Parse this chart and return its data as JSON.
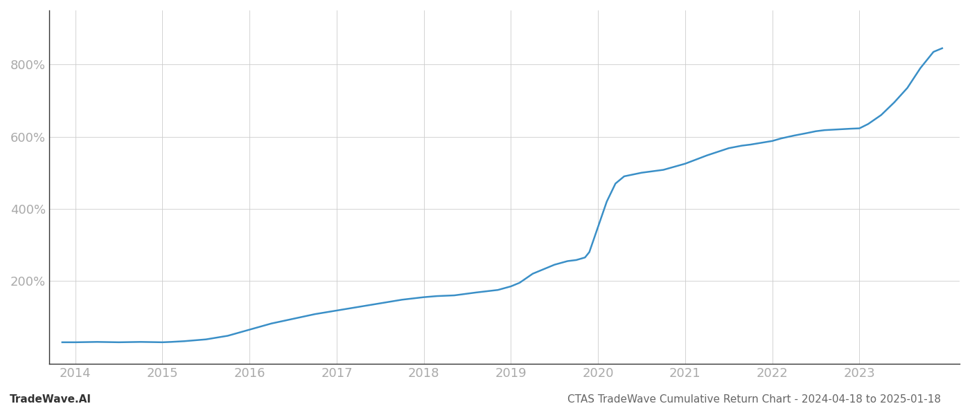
{
  "title": "CTAS TradeWave Cumulative Return Chart - 2024-04-18 to 2025-01-18",
  "watermark": "TradeWave.AI",
  "line_color": "#3a8fc7",
  "background_color": "#ffffff",
  "grid_color": "#cccccc",
  "x_years": [
    2014,
    2015,
    2016,
    2017,
    2018,
    2019,
    2020,
    2021,
    2022,
    2023
  ],
  "data_points": [
    [
      2013.85,
      30
    ],
    [
      2014.0,
      30
    ],
    [
      2014.25,
      31
    ],
    [
      2014.5,
      30
    ],
    [
      2014.75,
      31
    ],
    [
      2015.0,
      30
    ],
    [
      2015.1,
      31
    ],
    [
      2015.25,
      33
    ],
    [
      2015.5,
      38
    ],
    [
      2015.75,
      48
    ],
    [
      2016.0,
      65
    ],
    [
      2016.25,
      82
    ],
    [
      2016.5,
      95
    ],
    [
      2016.75,
      108
    ],
    [
      2017.0,
      118
    ],
    [
      2017.25,
      128
    ],
    [
      2017.5,
      138
    ],
    [
      2017.75,
      148
    ],
    [
      2018.0,
      155
    ],
    [
      2018.15,
      158
    ],
    [
      2018.35,
      160
    ],
    [
      2018.6,
      168
    ],
    [
      2018.85,
      175
    ],
    [
      2019.0,
      185
    ],
    [
      2019.1,
      195
    ],
    [
      2019.25,
      220
    ],
    [
      2019.5,
      245
    ],
    [
      2019.65,
      255
    ],
    [
      2019.75,
      258
    ],
    [
      2019.85,
      265
    ],
    [
      2019.9,
      280
    ],
    [
      2020.0,
      350
    ],
    [
      2020.1,
      420
    ],
    [
      2020.2,
      470
    ],
    [
      2020.3,
      490
    ],
    [
      2020.5,
      500
    ],
    [
      2020.75,
      508
    ],
    [
      2021.0,
      525
    ],
    [
      2021.25,
      548
    ],
    [
      2021.4,
      560
    ],
    [
      2021.5,
      568
    ],
    [
      2021.65,
      575
    ],
    [
      2021.75,
      578
    ],
    [
      2021.85,
      582
    ],
    [
      2022.0,
      588
    ],
    [
      2022.1,
      595
    ],
    [
      2022.25,
      603
    ],
    [
      2022.4,
      610
    ],
    [
      2022.5,
      615
    ],
    [
      2022.6,
      618
    ],
    [
      2022.75,
      620
    ],
    [
      2022.9,
      622
    ],
    [
      2023.0,
      623
    ],
    [
      2023.1,
      635
    ],
    [
      2023.25,
      660
    ],
    [
      2023.4,
      695
    ],
    [
      2023.55,
      735
    ],
    [
      2023.7,
      790
    ],
    [
      2023.85,
      835
    ],
    [
      2023.95,
      845
    ]
  ],
  "yticks": [
    200,
    400,
    600,
    800
  ],
  "ylim": [
    -30,
    950
  ],
  "xlim": [
    2013.7,
    2024.15
  ],
  "title_fontsize": 11,
  "watermark_fontsize": 11,
  "tick_fontsize": 13,
  "tick_color": "#aaaaaa",
  "spine_color": "#333333",
  "title_color": "#666666",
  "watermark_color": "#333333",
  "line_width": 1.8
}
